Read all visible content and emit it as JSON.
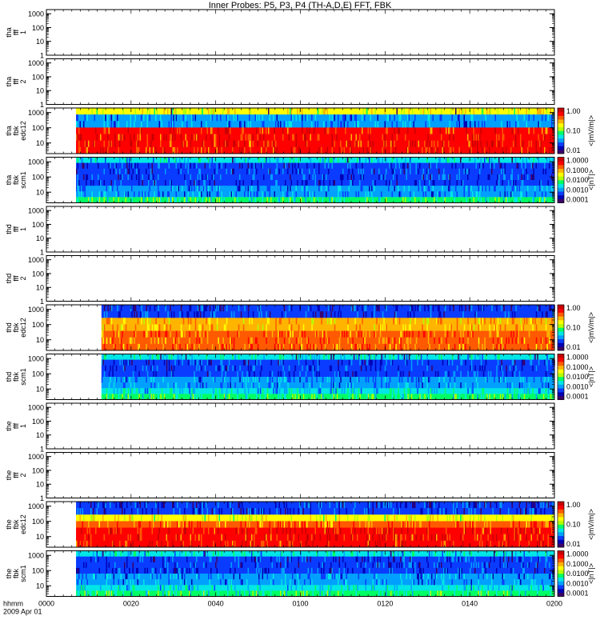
{
  "title": "Inner Probes: P5, P3, P4 (TH-A,D,E) FFT, FBK",
  "x_axis": {
    "header_label": "hhmm",
    "date_label": "2009 Apr 01",
    "tick_labels": [
      "0000",
      "0020",
      "0040",
      "0100",
      "0120",
      "0140",
      "0200"
    ]
  },
  "colormap": [
    "#3c0066",
    "#0000b4",
    "#0a3cff",
    "#00a0ff",
    "#00e6e6",
    "#00ff64",
    "#b4ff00",
    "#ffff00",
    "#ffb400",
    "#ff5a00",
    "#ff0000",
    "#c80000"
  ],
  "chart_data": [
    {
      "type": "heatmap",
      "panel_label": [
        "tha",
        "fff",
        "1"
      ],
      "y_ticks": [
        "1000",
        "100",
        "10",
        "1"
      ],
      "ylim": [
        1,
        2000
      ],
      "yscale": "log",
      "xlim": [
        "00:00",
        "02:00"
      ],
      "has_data": false
    },
    {
      "type": "heatmap",
      "panel_label": [
        "tha",
        "fff",
        "2"
      ],
      "y_ticks": [
        "1000",
        "100",
        "10",
        "1"
      ],
      "ylim": [
        1,
        2000
      ],
      "yscale": "log",
      "xlim": [
        "00:00",
        "02:00"
      ],
      "has_data": false
    },
    {
      "type": "heatmap",
      "panel_label": [
        "tha",
        "fbk",
        "edc12"
      ],
      "y_ticks": [
        "1000",
        "100",
        "10"
      ],
      "ylim": [
        2,
        2000
      ],
      "yscale": "log",
      "xlim": [
        "00:00",
        "02:00"
      ],
      "has_data": true,
      "data_start": "00:07",
      "bands": [
        7,
        3,
        3,
        10,
        10,
        10,
        10
      ],
      "colorbar": {
        "ticks": [
          "1.00",
          "0.10",
          "0.01"
        ],
        "unit": "<|mV/m|>"
      }
    },
    {
      "type": "heatmap",
      "panel_label": [
        "tha",
        "fbk",
        "scm1"
      ],
      "y_ticks": [
        "1000",
        "100",
        "10"
      ],
      "ylim": [
        2,
        2000
      ],
      "yscale": "log",
      "xlim": [
        "00:00",
        "02:00"
      ],
      "has_data": true,
      "data_start": "00:07",
      "bands": [
        4,
        2,
        2,
        2,
        2,
        3,
        3,
        5
      ],
      "colorbar": {
        "ticks": [
          "1.0000",
          "0.1000",
          "0.0100",
          "0.0010",
          "0.0001"
        ],
        "unit": "<|nT|>"
      }
    },
    {
      "type": "heatmap",
      "panel_label": [
        "thd",
        "fff",
        "1"
      ],
      "y_ticks": [
        "1000",
        "100",
        "10",
        "1"
      ],
      "ylim": [
        1,
        2000
      ],
      "yscale": "log",
      "xlim": [
        "00:00",
        "02:00"
      ],
      "has_data": false
    },
    {
      "type": "heatmap",
      "panel_label": [
        "thd",
        "fff",
        "2"
      ],
      "y_ticks": [
        "1000",
        "100",
        "10",
        "1"
      ],
      "ylim": [
        1,
        2000
      ],
      "yscale": "log",
      "xlim": [
        "00:00",
        "02:00"
      ],
      "has_data": false
    },
    {
      "type": "heatmap",
      "panel_label": [
        "thd",
        "fbk",
        "edc12"
      ],
      "y_ticks": [
        "1000",
        "100",
        "10"
      ],
      "ylim": [
        2,
        2000
      ],
      "yscale": "log",
      "xlim": [
        "00:00",
        "02:00"
      ],
      "has_data": true,
      "data_start": "00:13",
      "bands": [
        2,
        2,
        8,
        8,
        9,
        9,
        9
      ],
      "colorbar": {
        "ticks": [
          "1.00",
          "0.10",
          "0.01"
        ],
        "unit": "<|mV/m|>"
      }
    },
    {
      "type": "heatmap",
      "panel_label": [
        "thd",
        "fbk",
        "scm1"
      ],
      "y_ticks": [
        "1000",
        "100",
        "10"
      ],
      "ylim": [
        2,
        2000
      ],
      "yscale": "log",
      "xlim": [
        "00:00",
        "02:00"
      ],
      "has_data": true,
      "data_start": "00:13",
      "bands": [
        4,
        2,
        2,
        2,
        3,
        3,
        4,
        5
      ],
      "colorbar": {
        "ticks": [
          "1.0000",
          "0.1000",
          "0.0100",
          "0.0010",
          "0.0001"
        ],
        "unit": "<|nT|>"
      }
    },
    {
      "type": "heatmap",
      "panel_label": [
        "the",
        "fff",
        "1"
      ],
      "y_ticks": [
        "1000",
        "100",
        "10",
        "1"
      ],
      "ylim": [
        1,
        2000
      ],
      "yscale": "log",
      "xlim": [
        "00:00",
        "02:00"
      ],
      "has_data": false
    },
    {
      "type": "heatmap",
      "panel_label": [
        "the",
        "fff",
        "2"
      ],
      "y_ticks": [
        "1000",
        "100",
        "10",
        "1"
      ],
      "ylim": [
        1,
        2000
      ],
      "yscale": "log",
      "xlim": [
        "00:00",
        "02:00"
      ],
      "has_data": false
    },
    {
      "type": "heatmap",
      "panel_label": [
        "the",
        "fbk",
        "edc12"
      ],
      "y_ticks": [
        "1000",
        "100",
        "10"
      ],
      "ylim": [
        2,
        2000
      ],
      "yscale": "log",
      "xlim": [
        "00:00",
        "02:00"
      ],
      "has_data": true,
      "data_start": "00:07",
      "bands": [
        2,
        2,
        7,
        9,
        10,
        10,
        10
      ],
      "colorbar": {
        "ticks": [
          "1.00",
          "0.10",
          "0.01"
        ],
        "unit": "<|mV/m|>"
      }
    },
    {
      "type": "heatmap",
      "panel_label": [
        "the",
        "fbk",
        "scm1"
      ],
      "y_ticks": [
        "1000",
        "100",
        "10"
      ],
      "ylim": [
        2,
        2000
      ],
      "yscale": "log",
      "xlim": [
        "00:00",
        "02:00"
      ],
      "has_data": true,
      "data_start": "00:07",
      "bands": [
        4,
        2,
        2,
        2,
        3,
        3,
        4,
        5
      ],
      "colorbar": {
        "ticks": [
          "1.0000",
          "0.1000",
          "0.0100",
          "0.0010",
          "0.0001"
        ],
        "unit": "<|nT|>"
      }
    }
  ]
}
